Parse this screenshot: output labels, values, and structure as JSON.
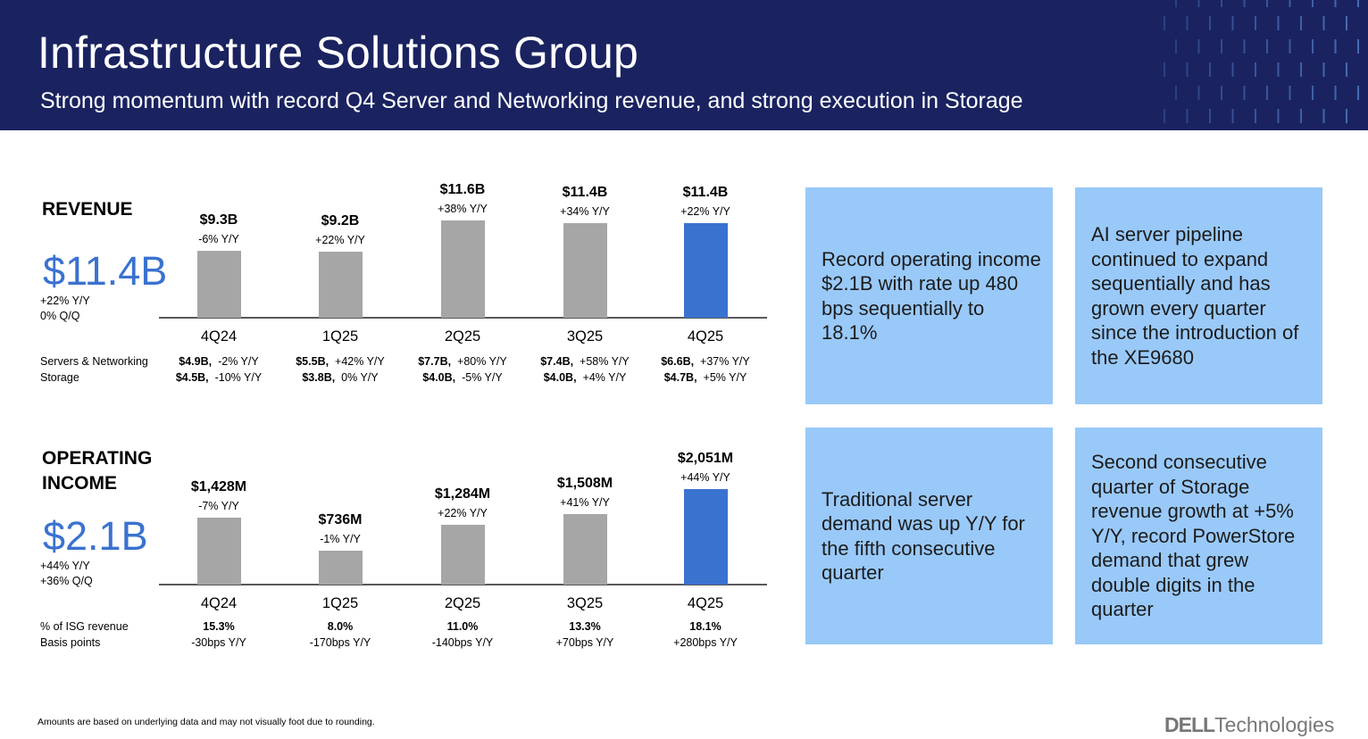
{
  "header": {
    "title": "Infrastructure Solutions Group",
    "subtitle": "Strong momentum with record Q4 Server and Networking revenue, and strong execution in Storage"
  },
  "revenue": {
    "title": "REVENUE",
    "headline": "$11.4B",
    "yoy": "+22% Y/Y",
    "qoq": "0% Q/Q",
    "row_labels": [
      "Servers & Networking",
      "Storage"
    ],
    "servers": [
      {
        "value": "$4.9B,",
        "change": "-2% Y/Y"
      },
      {
        "value": "$5.5B,",
        "change": "+42% Y/Y"
      },
      {
        "value": "$7.7B,",
        "change": "+80% Y/Y"
      },
      {
        "value": "$7.4B,",
        "change": "+58% Y/Y"
      },
      {
        "value": "$6.6B,",
        "change": "+37% Y/Y"
      }
    ],
    "storage": [
      {
        "value": "$4.5B,",
        "change": "-10% Y/Y"
      },
      {
        "value": "$3.8B,",
        "change": "0% Y/Y"
      },
      {
        "value": "$4.0B,",
        "change": "-5% Y/Y"
      },
      {
        "value": "$4.0B,",
        "change": "+4% Y/Y"
      },
      {
        "value": "$4.7B,",
        "change": "+5% Y/Y"
      }
    ]
  },
  "opinc": {
    "title_line1": "OPERATING",
    "title_line2": "INCOME",
    "headline": "$2.1B",
    "yoy": "+44% Y/Y",
    "qoq": "+36% Q/Q",
    "row_labels": [
      "% of ISG revenue",
      "Basis points"
    ],
    "pct": [
      "15.3%",
      "8.0%",
      "11.0%",
      "13.3%",
      "18.1%"
    ],
    "bps": [
      "-30bps Y/Y",
      "-170bps Y/Y",
      "-140bps Y/Y",
      "+70bps Y/Y",
      "+280bps Y/Y"
    ]
  },
  "chart_data": [
    {
      "type": "bar",
      "categories": [
        "4Q24",
        "1Q25",
        "2Q25",
        "3Q25",
        "4Q25"
      ],
      "values": [
        9.3,
        9.2,
        11.6,
        11.4,
        11.4
      ],
      "value_labels": [
        "$9.3B",
        "$9.2B",
        "$11.6B",
        "$11.4B",
        "$11.4B"
      ],
      "yoy_labels": [
        "-6% Y/Y",
        "+22% Y/Y",
        "+38% Y/Y",
        "+34% Y/Y",
        "+22% Y/Y"
      ],
      "unit": "$B",
      "ylim": [
        4.2,
        12
      ],
      "grid": false,
      "highlight_index": 4,
      "colors": {
        "bar": "#a6a6a6",
        "highlight": "#3a72d0"
      }
    },
    {
      "type": "bar",
      "categories": [
        "4Q24",
        "1Q25",
        "2Q25",
        "3Q25",
        "4Q25"
      ],
      "values": [
        1428,
        736,
        1284,
        1508,
        2051
      ],
      "value_labels": [
        "$1,428M",
        "$736M",
        "$1,284M",
        "$1,508M",
        "$2,051M"
      ],
      "yoy_labels": [
        "-7% Y/Y",
        "-1% Y/Y",
        "+22% Y/Y",
        "+41% Y/Y",
        "+44% Y/Y"
      ],
      "unit": "$M",
      "ylim": [
        0,
        2200
      ],
      "grid": false,
      "highlight_index": 4,
      "colors": {
        "bar": "#a6a6a6",
        "highlight": "#3a72d0"
      }
    }
  ],
  "callouts": [
    "Record operating income $2.1B with rate up 480 bps sequentially to 18.1%",
    "AI server pipeline continued to expand sequentially and has grown every quarter since the introduction of the XE9680",
    "Traditional server demand was up Y/Y for the fifth consecutive quarter",
    "Second consecutive quarter of Storage revenue growth at +5% Y/Y, record PowerStore demand that grew double digits in the quarter"
  ],
  "footnote": "Amounts are based on underlying data and may not visually foot due to rounding.",
  "logo": {
    "brand": "DELL",
    "suffix": "Technologies"
  }
}
